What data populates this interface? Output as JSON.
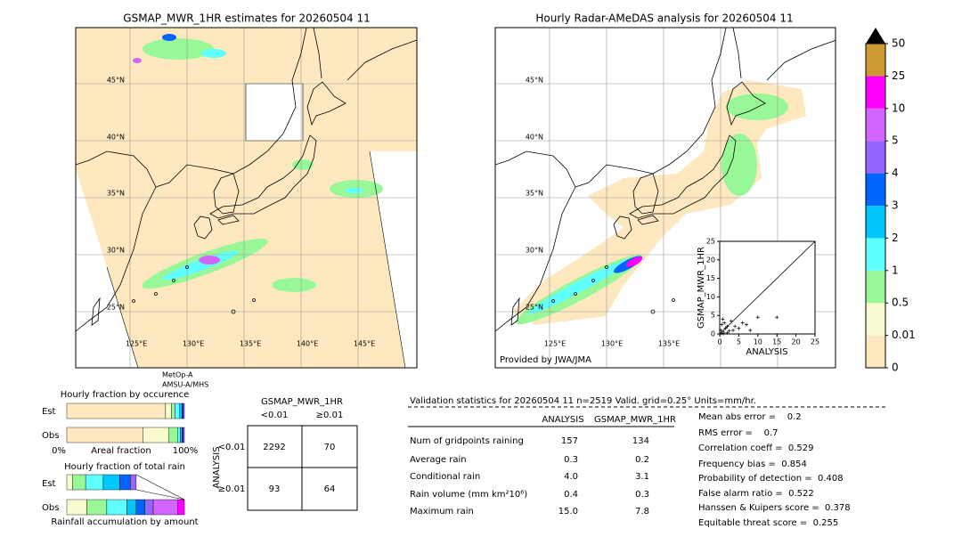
{
  "left_map": {
    "title": "GSMAP_MWR_1HR estimates for 20260504 11",
    "lat_labels": [
      "45°N",
      "40°N",
      "35°N",
      "30°N",
      "25°N"
    ],
    "lon_labels": [
      "125°E",
      "130°E",
      "135°E",
      "140°E",
      "145°E"
    ],
    "satellite": [
      "MetOp-A",
      "AMSU-A/MHS"
    ]
  },
  "right_map": {
    "title": "Hourly Radar-AMeDAS analysis for 20260504 11",
    "lat_labels": [
      "45°N",
      "40°N",
      "35°N",
      "30°N",
      "25°N"
    ],
    "lon_labels": [
      "125°E",
      "130°E",
      "135°E"
    ],
    "credit": "Provided by JWA/JMA"
  },
  "scatter": {
    "xlabel": "ANALYSIS",
    "ylabel": "GSMAP_MWR_1HR",
    "xlim": [
      0,
      25
    ],
    "ylim": [
      0,
      25
    ],
    "xticks": [
      0,
      5,
      10,
      15,
      20,
      25
    ],
    "yticks": [
      0,
      5,
      10,
      15,
      20,
      25
    ],
    "x": [
      0.3,
      0.5,
      0.8,
      1,
      1.2,
      1.5,
      2,
      2.5,
      3,
      3.5,
      4,
      5,
      6,
      7,
      8,
      10,
      15,
      0.5,
      1,
      2
    ],
    "y": [
      1,
      2.5,
      4,
      0.5,
      3,
      1.5,
      2,
      0.8,
      3.5,
      1,
      2,
      1.5,
      3,
      2.5,
      1,
      4.5,
      4.5,
      0.2,
      0.1,
      0.3
    ]
  },
  "colorbar": {
    "labels": [
      0,
      0.01,
      0.5,
      1,
      2,
      3,
      4,
      5,
      10,
      25,
      50
    ],
    "colors": [
      "#fde8c0",
      "#fafad0",
      "#98f898",
      "#60ffff",
      "#00c8ff",
      "#0064ff",
      "#9664ff",
      "#d264ff",
      "#ff00ff",
      "#cc9933"
    ],
    "extend_color": "#000000"
  },
  "occurrence": {
    "title": "Hourly fraction by occurence",
    "rows": [
      "Est",
      "Obs"
    ],
    "est": [
      84,
      5,
      3,
      4,
      2,
      1,
      1
    ],
    "obs": [
      65,
      22,
      7.5,
      2,
      1.5,
      1,
      1
    ],
    "axis": [
      "0%",
      "Areal fraction",
      "100%"
    ]
  },
  "total_rain": {
    "title": "Hourly fraction of total rain",
    "rows": [
      "Est",
      "Obs"
    ],
    "est": [
      5,
      11,
      15,
      14,
      9,
      5
    ],
    "obs": [
      17,
      17,
      17,
      8,
      7.5,
      7,
      21,
      5.5
    ],
    "footer": "Rainfall accumulation by amount"
  },
  "contingency": {
    "title": "GSMAP_MWR_1HR",
    "cols": [
      "<0.01",
      "≥0.01"
    ],
    "row_title": "ANALYSIS",
    "rows": [
      "<0.01",
      "≥0.01"
    ],
    "cells": [
      [
        "2292",
        "70"
      ],
      [
        "93",
        "64"
      ]
    ]
  },
  "validation": {
    "header": "Validation statistics for 20260504 11  n=2519 Valid. grid=0.25° Units=mm/hr.",
    "columns": [
      "ANALYSIS",
      "GSMAP_MWR_1HR"
    ],
    "rows": [
      {
        "label": "Num of gridpoints raining",
        "values": [
          "157",
          "134"
        ]
      },
      {
        "label": "Average rain",
        "values": [
          "0.3",
          "0.2"
        ]
      },
      {
        "label": "Conditional rain",
        "values": [
          "4.0",
          "3.1"
        ]
      },
      {
        "label": "Rain volume (mm km²10⁶)",
        "values": [
          "0.4",
          "0.3"
        ]
      },
      {
        "label": "Maximum rain",
        "values": [
          "15.0",
          "7.8"
        ]
      }
    ],
    "scores": [
      "Mean abs error =    0.2",
      "RMS error =    0.7",
      "Correlation coeff =  0.529",
      "Frequency bias =  0.854",
      "Probability of detection =  0.408",
      "False alarm ratio =  0.522",
      "Hanssen & Kuipers score =  0.378",
      "Equitable threat score =  0.255"
    ]
  }
}
